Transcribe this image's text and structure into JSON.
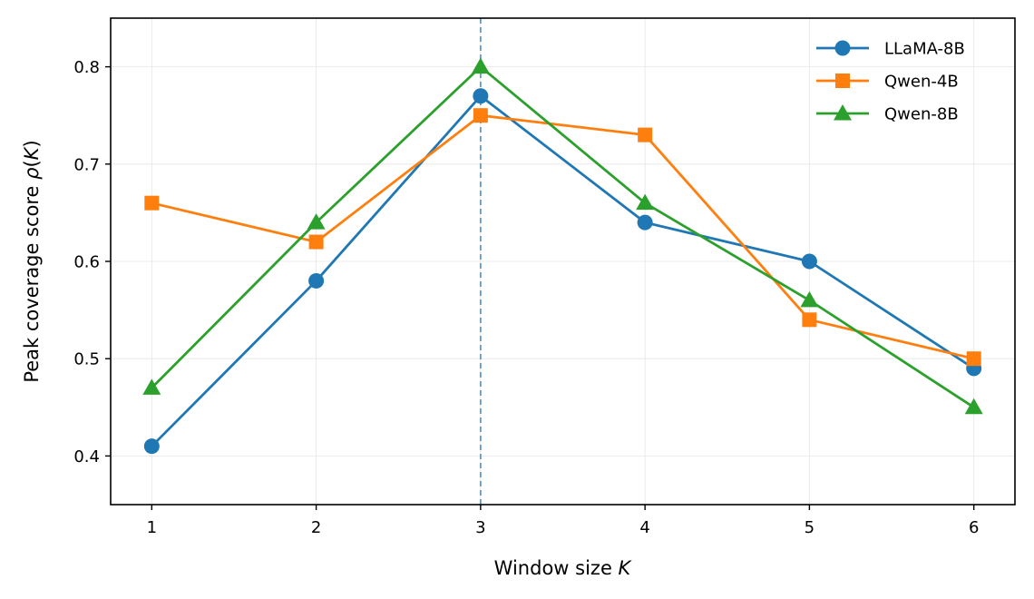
{
  "chart_data": {
    "type": "line",
    "x": [
      1,
      2,
      3,
      4,
      5,
      6
    ],
    "xlabel": {
      "prefix": "Window size ",
      "var": "K",
      "suffix": ""
    },
    "ylabel": {
      "prefix": "Peak coverage score ",
      "var": "ρ",
      "suffix": "(",
      "var2": "K",
      "suffix2": ")"
    },
    "xlim": [
      0.75,
      6.25
    ],
    "ylim": [
      0.35,
      0.85
    ],
    "xticks": [
      "1",
      "2",
      "3",
      "4",
      "5",
      "6"
    ],
    "yticks": [
      "0.4",
      "0.5",
      "0.6",
      "0.7",
      "0.8"
    ],
    "grid": true,
    "legend_position": "top-right",
    "vline": {
      "x": 3,
      "style": "dashed",
      "color": "#5b9bc8"
    },
    "series": [
      {
        "name": "LLaMA-8B",
        "color": "#1f77b4",
        "marker": "circle",
        "values": [
          0.41,
          0.58,
          0.77,
          0.64,
          0.6,
          0.49
        ]
      },
      {
        "name": "Qwen-4B",
        "color": "#ff7f0e",
        "marker": "square",
        "values": [
          0.66,
          0.62,
          0.75,
          0.73,
          0.54,
          0.5
        ]
      },
      {
        "name": "Qwen-8B",
        "color": "#2ca02c",
        "marker": "triangle",
        "values": [
          0.47,
          0.64,
          0.8,
          0.66,
          0.56,
          0.45
        ]
      }
    ]
  }
}
